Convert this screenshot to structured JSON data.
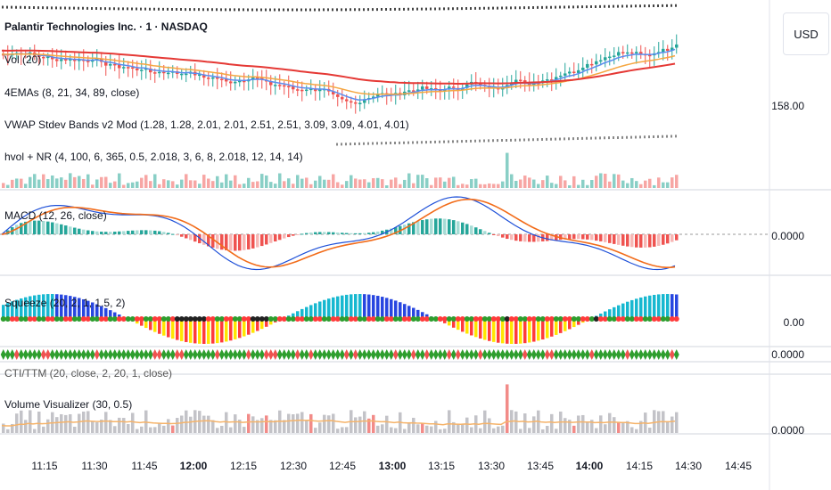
{
  "symbol": {
    "title": "Palantir Technologies Inc. · 1 · NASDAQ"
  },
  "indicators": {
    "vol": "Vol (20)",
    "emas": "4EMAs (8, 21, 34, 89, close)",
    "vwap": "VWAP Stdev Bands v2 Mod (1.28, 1.28, 2.01, 2.01, 2.51, 2.51, 3.09, 3.09, 4.01, 4.01)",
    "hvol": "hvol + NR (4, 100, 6, 365, 0.5, 2.018, 3, 6, 8, 2.018, 12, 14, 14)",
    "macd": "MACD (12, 26, close)",
    "squeeze": "Squeeze (20, 2, 1, 1.5, 2)",
    "cti": "CTI/TTM (20, close, 2, 20, 1, close)",
    "volviz": "Volume Visualizer (30, 0.5)"
  },
  "price_axis": {
    "currency": "USD",
    "price_level": "158.00",
    "macd_zero": "0.0000",
    "squeeze_zero": "0.00",
    "cti_zero": "0.0000",
    "volviz_zero": "0.0000"
  },
  "time_axis": [
    {
      "label": "11:15",
      "bold": false
    },
    {
      "label": "11:30",
      "bold": false
    },
    {
      "label": "11:45",
      "bold": false
    },
    {
      "label": "12:00",
      "bold": true
    },
    {
      "label": "12:15",
      "bold": false
    },
    {
      "label": "12:30",
      "bold": false
    },
    {
      "label": "12:45",
      "bold": false
    },
    {
      "label": "13:00",
      "bold": true
    },
    {
      "label": "13:15",
      "bold": false
    },
    {
      "label": "13:30",
      "bold": false
    },
    {
      "label": "13:45",
      "bold": false
    },
    {
      "label": "14:00",
      "bold": true
    },
    {
      "label": "14:15",
      "bold": false
    },
    {
      "label": "14:30",
      "bold": false
    },
    {
      "label": "14:45",
      "bold": false
    }
  ],
  "colors": {
    "up": "#26a69a",
    "down": "#ef5350",
    "ema_fast": "#5b8def",
    "ema_slow": "#f5a742",
    "ema_long": "#e53935",
    "macd_line": "#1e50d8",
    "signal_line": "#f26c1a",
    "squeeze_cyan": "#17b8d0",
    "squeeze_blue": "#2746e0",
    "squeeze_yellow": "#ffe600",
    "squeeze_red": "#ff3b3b",
    "dot_green": "#2e9e2e",
    "dot_black": "#222222",
    "vol_gray": "#c3c3c8",
    "vol_avg": "#f5b36a"
  }
}
